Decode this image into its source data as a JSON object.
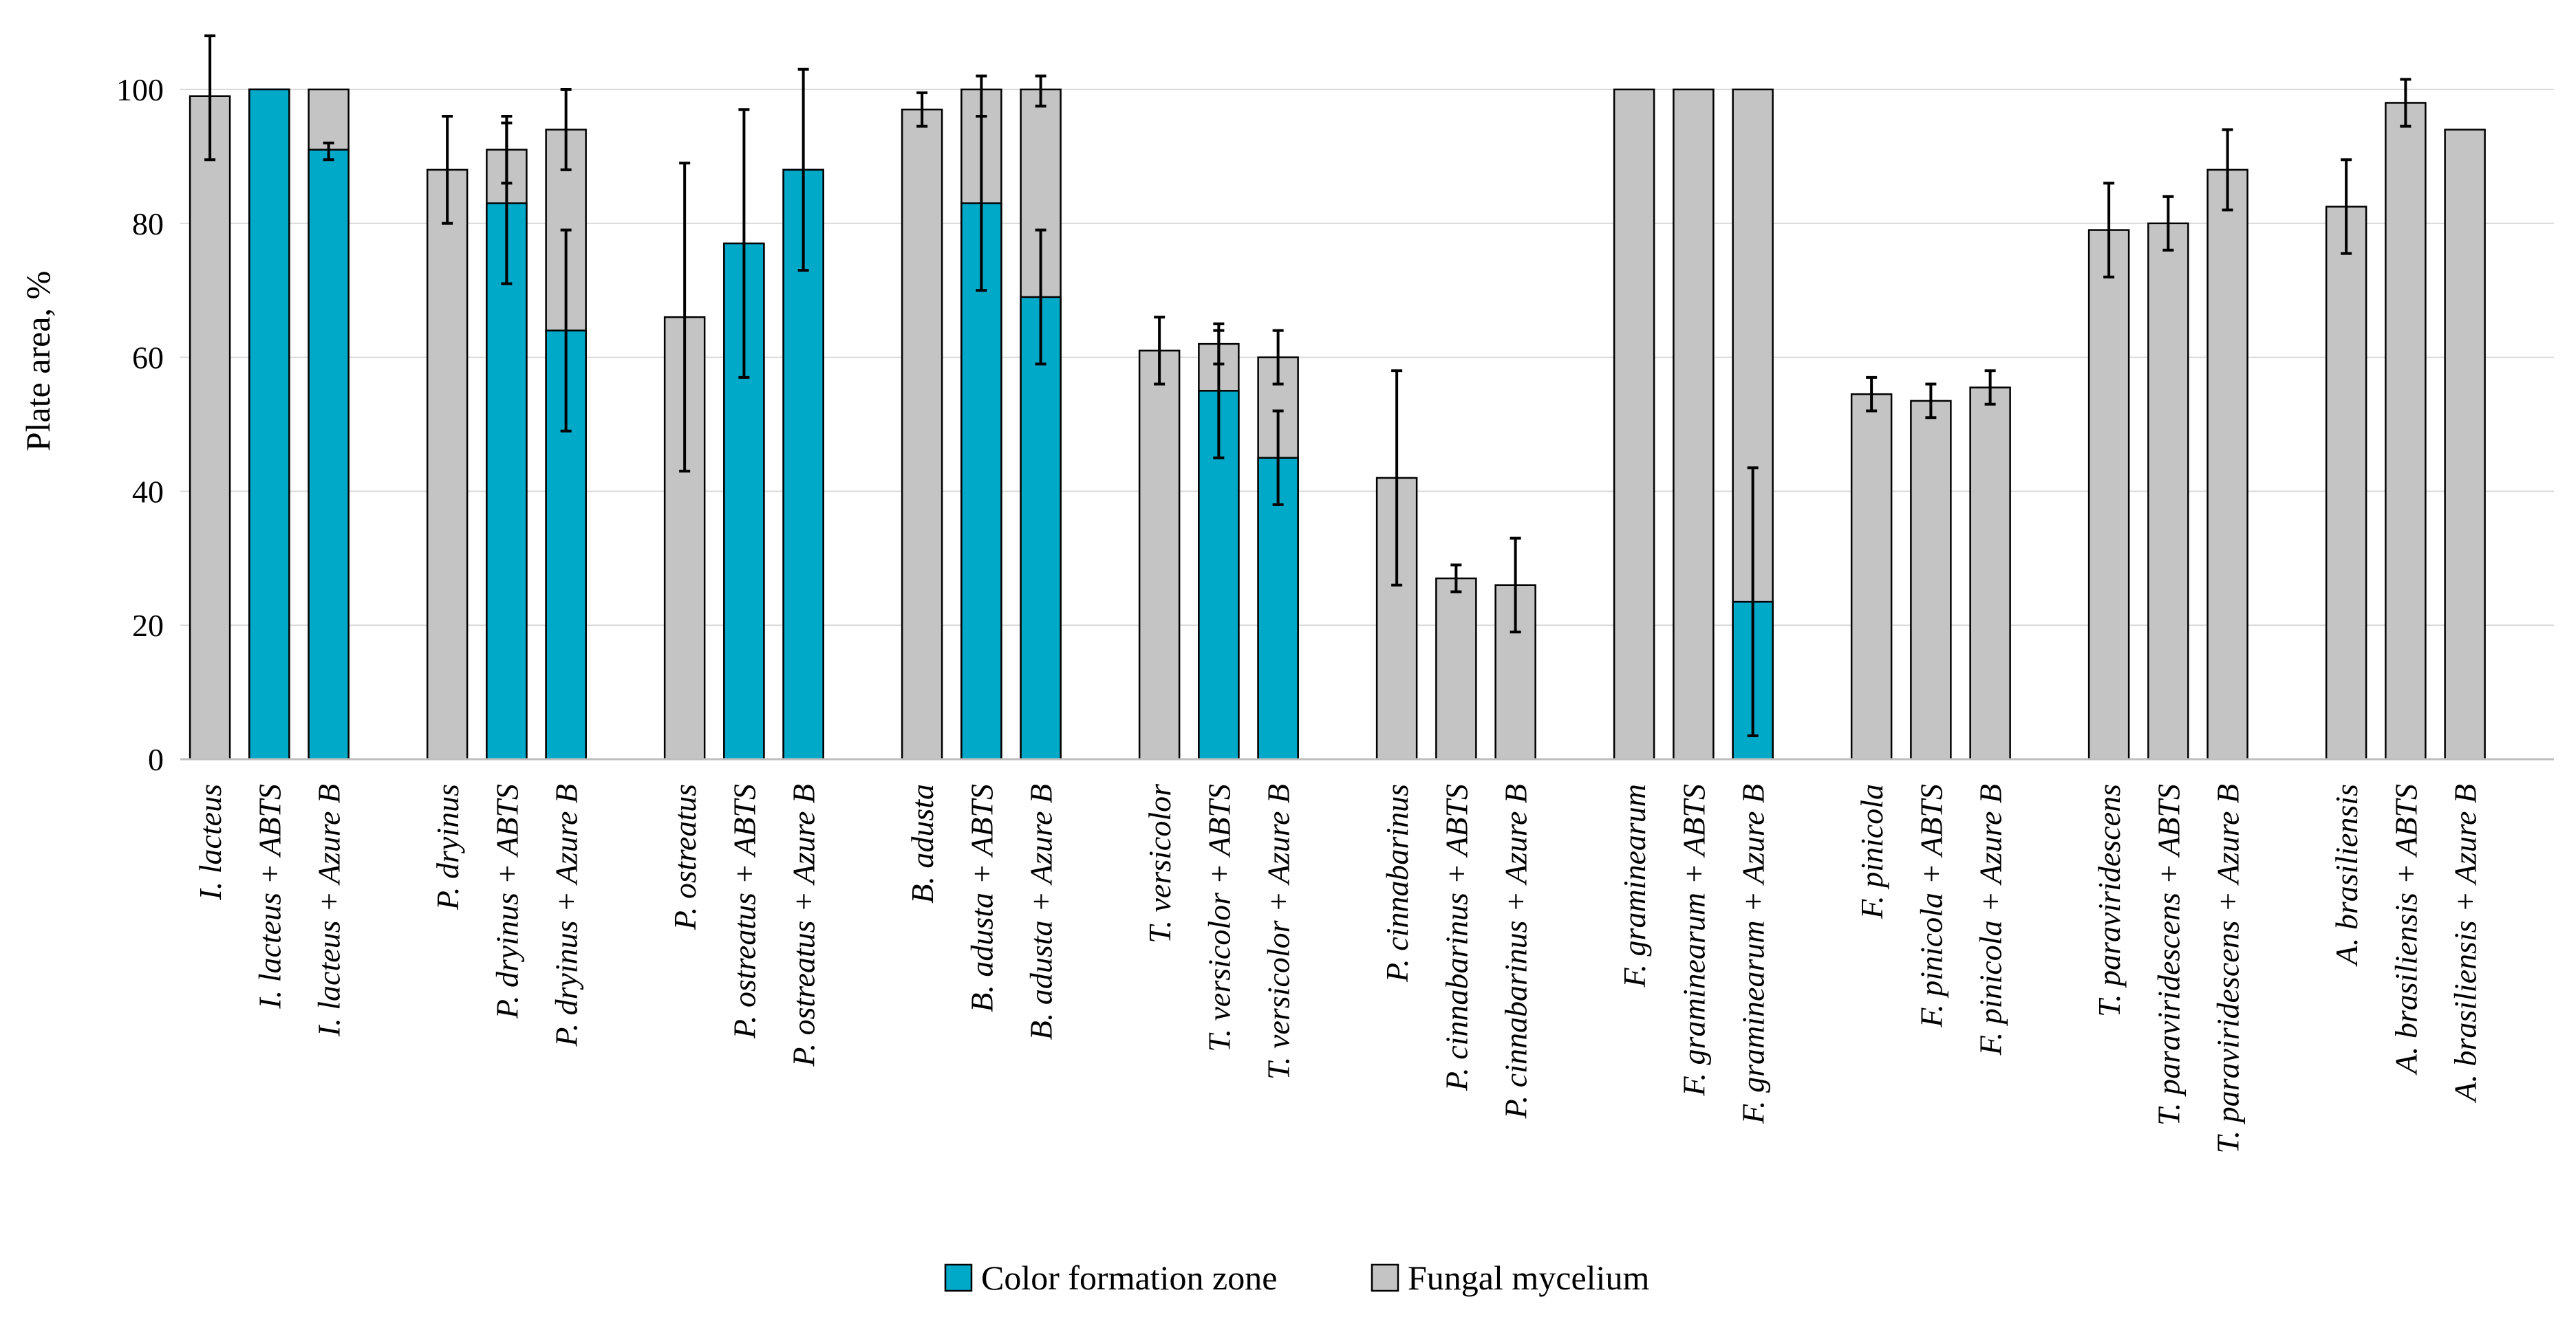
{
  "chart_data": {
    "type": "bar",
    "stacked": true,
    "title": "",
    "ylabel": "Plate area, %",
    "xlabel": "",
    "ylim": [
      0,
      100
    ],
    "yticks": [
      0,
      20,
      40,
      60,
      80,
      100
    ],
    "grid": true,
    "legend_position": "bottom-center",
    "series": [
      {
        "name": "Color formation zone",
        "color": "#00A9C7"
      },
      {
        "name": "Fungal mycelium",
        "color": "#C4C4C4"
      }
    ],
    "groups": [
      {
        "bars": [
          {
            "label": "I. lacteus",
            "total": 99,
            "color_zone": null,
            "err_total": [
              89.5,
              108
            ],
            "err_color": null
          },
          {
            "label": "I. lacteus + ABTS",
            "total": 100,
            "color_zone": 100,
            "err_total": null,
            "err_color": null
          },
          {
            "label": "I. lacteus + Azure B",
            "total": 100,
            "color_zone": 91,
            "err_total": null,
            "err_color": [
              89.5,
              92
            ]
          }
        ]
      },
      {
        "bars": [
          {
            "label": "P. dryinus",
            "total": 88,
            "color_zone": null,
            "err_total": [
              80,
              96
            ],
            "err_color": null
          },
          {
            "label": "P. dryinus + ABTS",
            "total": 91,
            "color_zone": 83,
            "err_total": [
              86,
              96
            ],
            "err_color": [
              71,
              95
            ]
          },
          {
            "label": "P. dryinus + Azure B",
            "total": 94,
            "color_zone": 64,
            "err_total": [
              88,
              100
            ],
            "err_color": [
              49,
              79
            ]
          }
        ]
      },
      {
        "bars": [
          {
            "label": "P. ostreatus",
            "total": 66,
            "color_zone": null,
            "err_total": [
              43,
              89
            ],
            "err_color": null
          },
          {
            "label": "P. ostreatus + ABTS",
            "total": 77,
            "color_zone": 77,
            "err_total": null,
            "err_color": [
              57,
              97
            ]
          },
          {
            "label": "P. ostreatus + Azure B",
            "total": 88,
            "color_zone": 88,
            "err_total": null,
            "err_color": [
              73,
              103
            ]
          }
        ]
      },
      {
        "bars": [
          {
            "label": "B. adusta",
            "total": 97,
            "color_zone": null,
            "err_total": [
              94.5,
              99.5
            ],
            "err_color": null
          },
          {
            "label": "B. adusta + ABTS",
            "total": 100,
            "color_zone": 83,
            "err_total": [
              96,
              102
            ],
            "err_color": [
              70,
              96
            ]
          },
          {
            "label": "B. adusta + Azure B",
            "total": 100,
            "color_zone": 69,
            "err_total": [
              97.5,
              102
            ],
            "err_color": [
              59,
              79
            ]
          }
        ]
      },
      {
        "bars": [
          {
            "label": "T. versicolor",
            "total": 61,
            "color_zone": null,
            "err_total": [
              56,
              66
            ],
            "err_color": null
          },
          {
            "label": "T. versicolor + ABTS",
            "total": 62,
            "color_zone": 55,
            "err_total": [
              59,
              65
            ],
            "err_color": [
              45,
              64
            ]
          },
          {
            "label": "T. versicolor + Azure B",
            "total": 60,
            "color_zone": 45,
            "err_total": [
              56,
              64
            ],
            "err_color": [
              38,
              52
            ]
          }
        ]
      },
      {
        "bars": [
          {
            "label": "P. cinnabarinus",
            "total": 42,
            "color_zone": null,
            "err_total": [
              26,
              58
            ],
            "err_color": null
          },
          {
            "label": "P. cinnabarinus + ABTS",
            "total": 27,
            "color_zone": null,
            "err_total": [
              25,
              29
            ],
            "err_color": null
          },
          {
            "label": "P. cinnabarinus + Azure B",
            "total": 26,
            "color_zone": null,
            "err_total": [
              19,
              33
            ],
            "err_color": null
          }
        ]
      },
      {
        "bars": [
          {
            "label": "F. graminearum",
            "total": 100,
            "color_zone": null,
            "err_total": null,
            "err_color": null
          },
          {
            "label": "F. graminearum + ABTS",
            "total": 100,
            "color_zone": null,
            "err_total": null,
            "err_color": null
          },
          {
            "label": "F. graminearum + Azure B",
            "total": 100,
            "color_zone": 23.5,
            "err_total": null,
            "err_color": [
              3.5,
              43.5
            ]
          }
        ]
      },
      {
        "bars": [
          {
            "label": "F. pinicola",
            "total": 54.5,
            "color_zone": null,
            "err_total": [
              52,
              57
            ],
            "err_color": null
          },
          {
            "label": "F. pinicola + ABTS",
            "total": 53.5,
            "color_zone": null,
            "err_total": [
              51,
              56
            ],
            "err_color": null
          },
          {
            "label": "F. pinicola + Azure B",
            "total": 55.5,
            "color_zone": null,
            "err_total": [
              53,
              58
            ],
            "err_color": null
          }
        ]
      },
      {
        "bars": [
          {
            "label": "T. paraviridescens",
            "total": 79,
            "color_zone": null,
            "err_total": [
              72,
              86
            ],
            "err_color": null
          },
          {
            "label": "T. paraviridescens + ABTS",
            "total": 80,
            "color_zone": null,
            "err_total": [
              76,
              84
            ],
            "err_color": null
          },
          {
            "label": "T. paraviridescens + Azure B",
            "total": 88,
            "color_zone": null,
            "err_total": [
              82,
              94
            ],
            "err_color": null
          }
        ]
      },
      {
        "bars": [
          {
            "label": "A. brasiliensis",
            "total": 82.5,
            "color_zone": null,
            "err_total": [
              75.5,
              89.5
            ],
            "err_color": null
          },
          {
            "label": "A. brasiliensis  + ABTS",
            "total": 98,
            "color_zone": null,
            "err_total": [
              94.5,
              101.5
            ],
            "err_color": null
          },
          {
            "label": "A. brasiliensis + Azure B",
            "total": 94,
            "color_zone": null,
            "err_total": null,
            "err_color": null
          }
        ]
      }
    ]
  }
}
